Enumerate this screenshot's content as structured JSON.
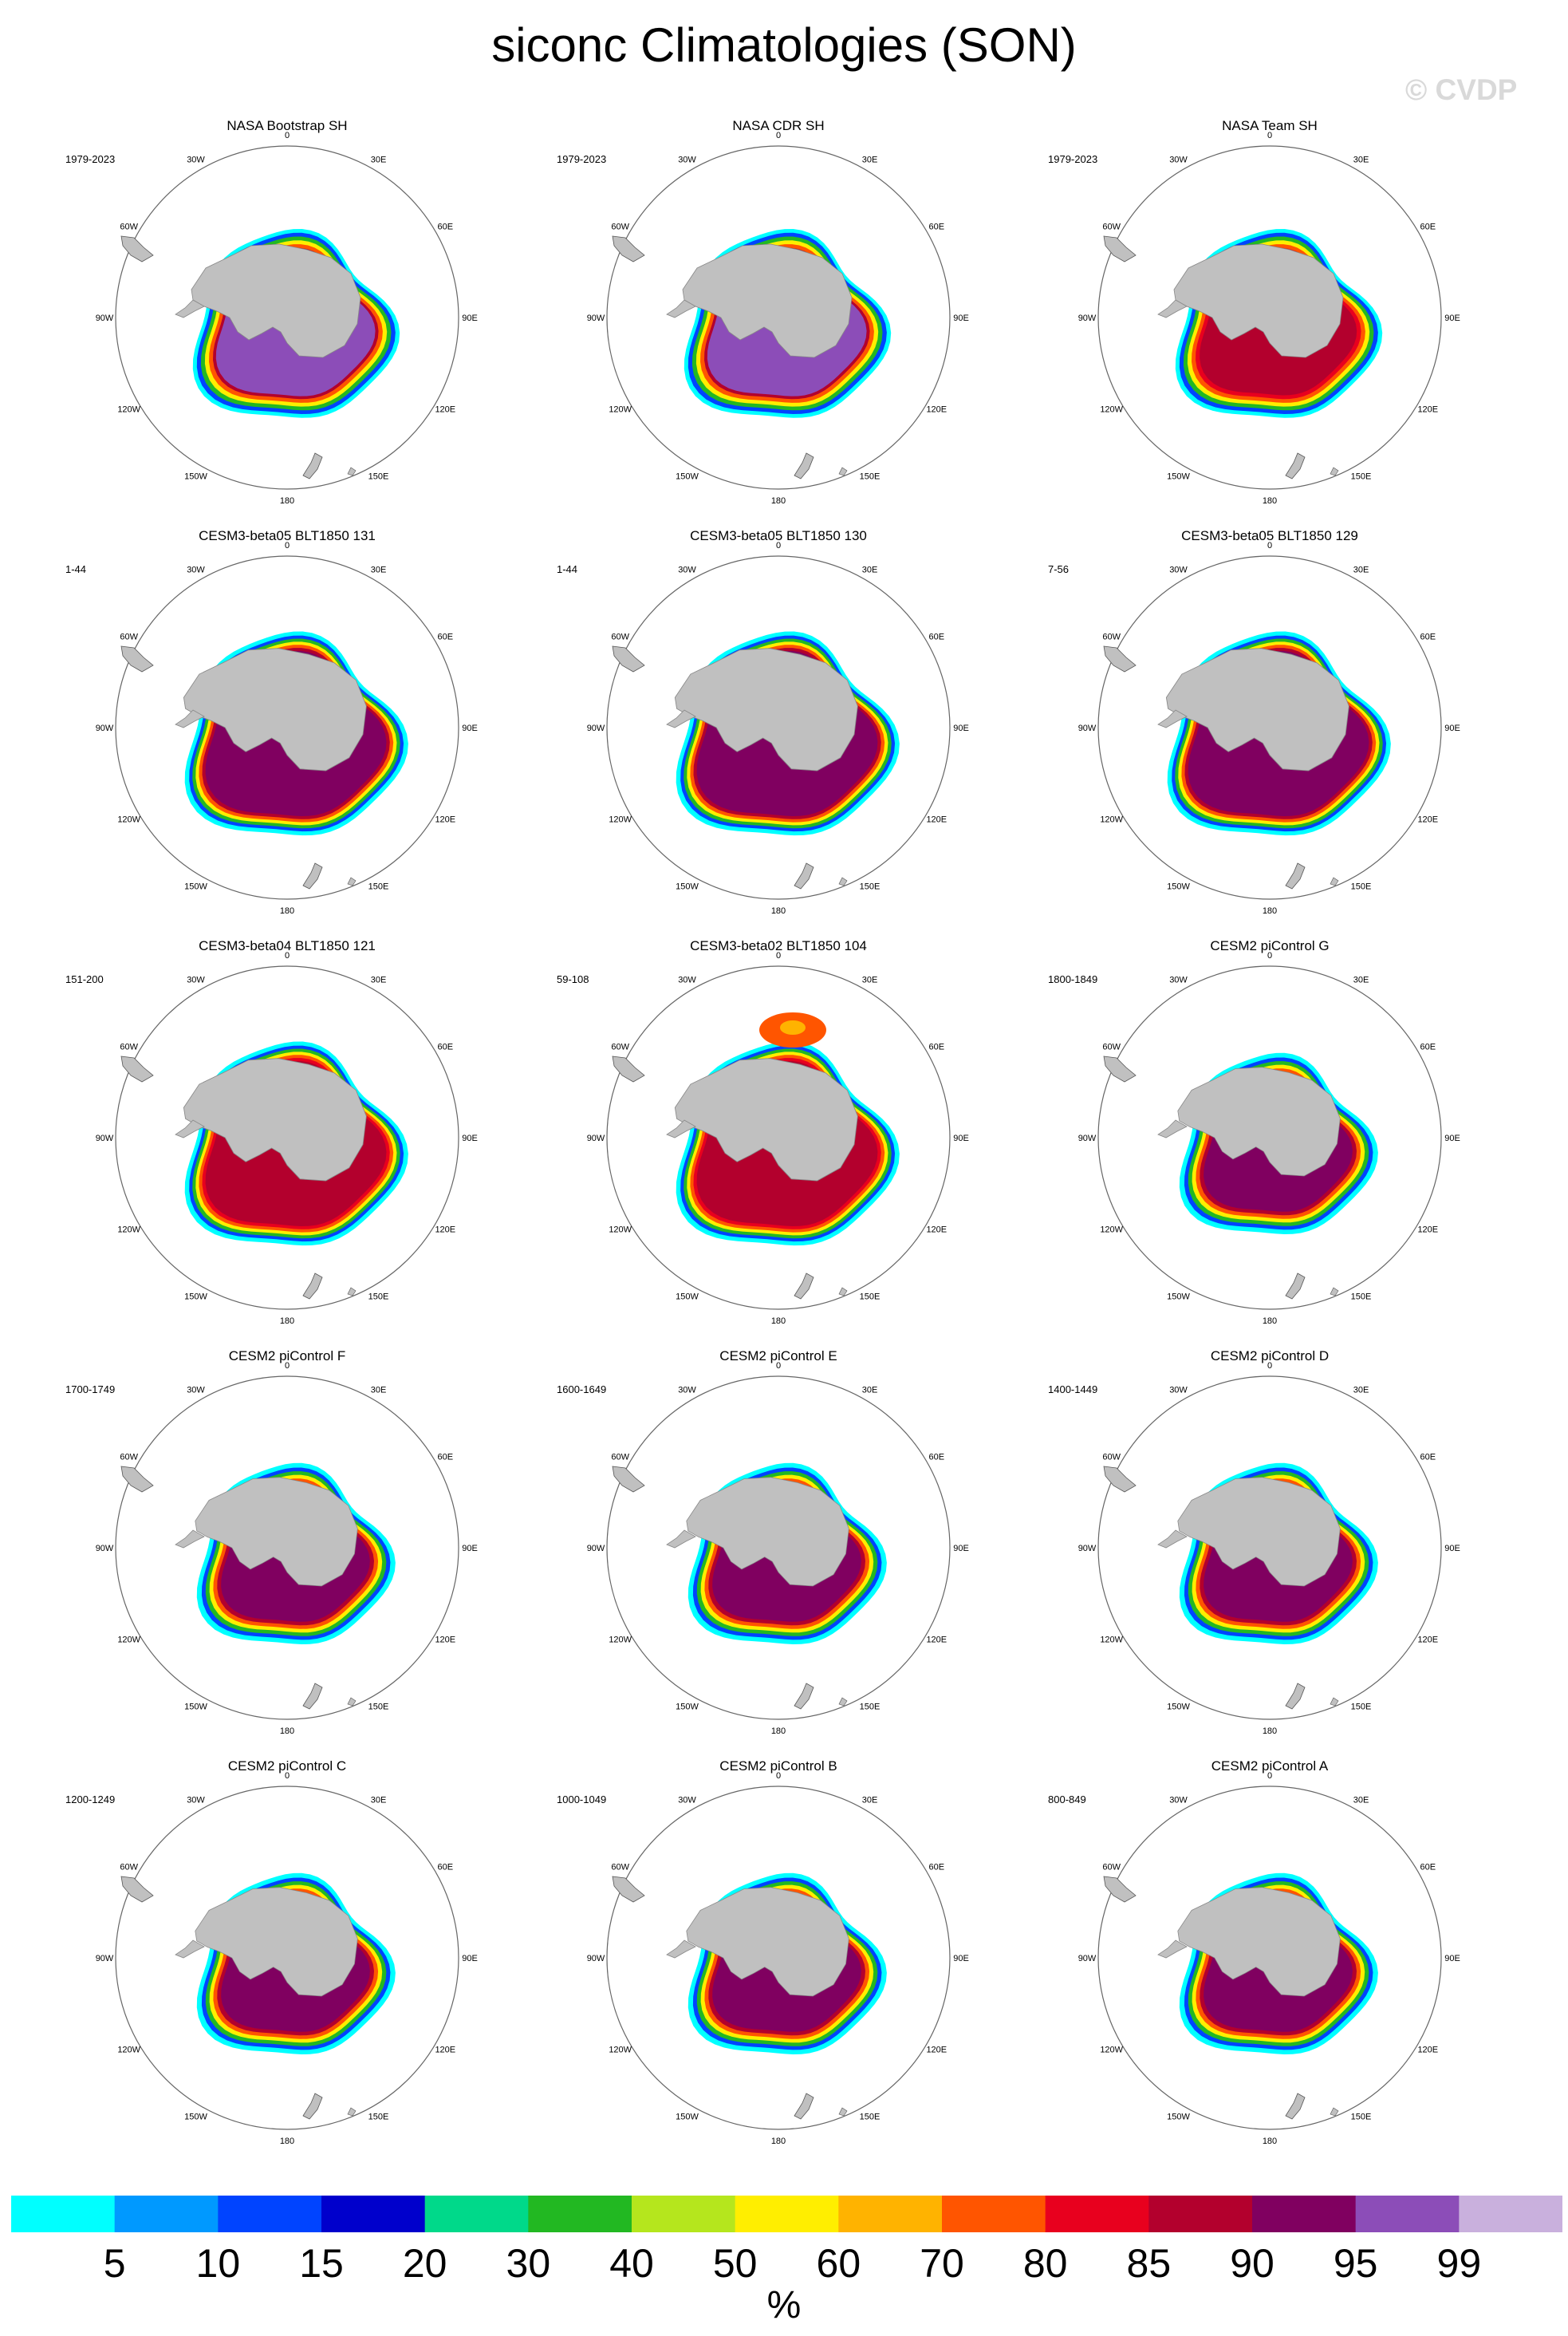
{
  "title": "siconc Climatologies (SON)",
  "watermark": "© CVDP",
  "lon_labels": [
    "0",
    "30E",
    "60E",
    "90E",
    "120E",
    "150E",
    "180",
    "150W",
    "120W",
    "90W",
    "60W",
    "30W"
  ],
  "panels": [
    {
      "title": "NASA Bootstrap SH",
      "years": "1979-2023",
      "style": "obs_bootstrap"
    },
    {
      "title": "NASA CDR SH",
      "years": "1979-2023",
      "style": "obs_bootstrap"
    },
    {
      "title": "NASA Team SH",
      "years": "1979-2023",
      "style": "obs_team"
    },
    {
      "title": "CESM3-beta05 BLT1850 131",
      "years": "1-44",
      "style": "cesm3"
    },
    {
      "title": "CESM3-beta05 BLT1850 130",
      "years": "1-44",
      "style": "cesm3"
    },
    {
      "title": "CESM3-beta05 BLT1850 129",
      "years": "7-56",
      "style": "cesm3"
    },
    {
      "title": "CESM3-beta04 BLT1850 121",
      "years": "151-200",
      "style": "cesm3_b04"
    },
    {
      "title": "CESM3-beta02 BLT1850 104",
      "years": "59-108",
      "style": "cesm3_b02"
    },
    {
      "title": "CESM2 piControl G",
      "years": "1800-1849",
      "style": "cesm2"
    },
    {
      "title": "CESM2 piControl F",
      "years": "1700-1749",
      "style": "cesm2"
    },
    {
      "title": "CESM2 piControl E",
      "years": "1600-1649",
      "style": "cesm2"
    },
    {
      "title": "CESM2 piControl D",
      "years": "1400-1449",
      "style": "cesm2"
    },
    {
      "title": "CESM2 piControl C",
      "years": "1200-1249",
      "style": "cesm2"
    },
    {
      "title": "CESM2 piControl B",
      "years": "1000-1049",
      "style": "cesm2"
    },
    {
      "title": "CESM2 piControl A",
      "years": "800-849",
      "style": "cesm2"
    }
  ],
  "colorbar": {
    "colors": [
      "#00ffff",
      "#0099ff",
      "#0044ff",
      "#0000cc",
      "#00d98a",
      "#22b822",
      "#b5e61d",
      "#ffee00",
      "#ffb300",
      "#ff5500",
      "#e8001e",
      "#b3002d",
      "#800060",
      "#8c4db8",
      "#c9b0dd"
    ],
    "labels": [
      "5",
      "10",
      "15",
      "20",
      "30",
      "40",
      "50",
      "60",
      "70",
      "80",
      "85",
      "90",
      "95",
      "99"
    ],
    "units": "%"
  },
  "colors": {
    "land": "#c0c0c0",
    "coast": "#555555",
    "circle": "#666666"
  }
}
